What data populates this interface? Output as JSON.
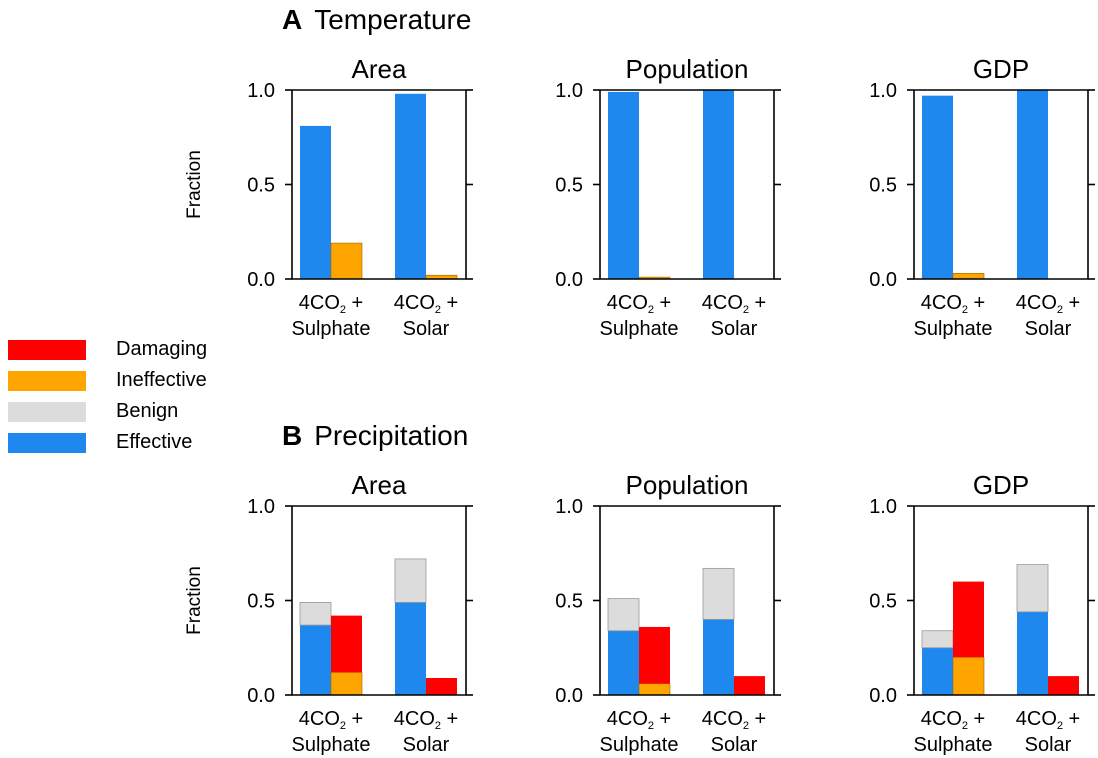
{
  "colors": {
    "Damaging": "#ff0000",
    "Ineffective": "#ffa500",
    "Benign": "#dcdcdc",
    "Effective": "#1e88ee"
  },
  "legend": [
    {
      "label": "Damaging",
      "color": "#ff0000"
    },
    {
      "label": "Ineffective",
      "color": "#ffa500"
    },
    {
      "label": "Benign",
      "color": "#dcdcdc"
    },
    {
      "label": "Effective",
      "color": "#1e88ee"
    }
  ],
  "sections": [
    {
      "letter": "A",
      "title": "Temperature"
    },
    {
      "letter": "B",
      "title": "Precipitation"
    }
  ],
  "chart_data": [
    {
      "type": "bar",
      "section": "A",
      "title": "Area",
      "ylabel": "Fraction",
      "ylim": [
        0,
        1
      ],
      "yticks": [
        "0.0",
        "0.5",
        "1.0"
      ],
      "categories": [
        "4CO2 + Sulphate",
        "4CO2 + Solar"
      ],
      "series": [
        {
          "name": "Effective",
          "values": [
            0.81,
            0.98
          ]
        },
        {
          "name": "Benign",
          "values": [
            0.0,
            0.0
          ]
        },
        {
          "name": "Ineffective",
          "values": [
            0.19,
            0.02
          ]
        },
        {
          "name": "Damaging",
          "values": [
            0.0,
            0.0
          ]
        }
      ]
    },
    {
      "type": "bar",
      "section": "A",
      "title": "Population",
      "ylabel": "",
      "ylim": [
        0,
        1
      ],
      "yticks": [
        "0.0",
        "0.5",
        "1.0"
      ],
      "categories": [
        "4CO2 + Sulphate",
        "4CO2 + Solar"
      ],
      "series": [
        {
          "name": "Effective",
          "values": [
            0.99,
            1.0
          ]
        },
        {
          "name": "Benign",
          "values": [
            0.0,
            0.0
          ]
        },
        {
          "name": "Ineffective",
          "values": [
            0.01,
            0.0
          ]
        },
        {
          "name": "Damaging",
          "values": [
            0.0,
            0.0
          ]
        }
      ]
    },
    {
      "type": "bar",
      "section": "A",
      "title": "GDP",
      "ylabel": "",
      "ylim": [
        0,
        1
      ],
      "yticks": [
        "0.0",
        "0.5",
        "1.0"
      ],
      "categories": [
        "4CO2 + Sulphate",
        "4CO2 + Solar"
      ],
      "series": [
        {
          "name": "Effective",
          "values": [
            0.97,
            1.0
          ]
        },
        {
          "name": "Benign",
          "values": [
            0.0,
            0.0
          ]
        },
        {
          "name": "Ineffective",
          "values": [
            0.03,
            0.0
          ]
        },
        {
          "name": "Damaging",
          "values": [
            0.0,
            0.0
          ]
        }
      ]
    },
    {
      "type": "bar",
      "section": "B",
      "title": "Area",
      "ylabel": "Fraction",
      "ylim": [
        0,
        1
      ],
      "yticks": [
        "0.0",
        "0.5",
        "1.0"
      ],
      "categories": [
        "4CO2 + Sulphate",
        "4CO2 + Solar"
      ],
      "series": [
        {
          "name": "Effective",
          "values": [
            0.37,
            0.49
          ]
        },
        {
          "name": "Benign",
          "values": [
            0.12,
            0.23
          ]
        },
        {
          "name": "Ineffective",
          "values": [
            0.12,
            0.0
          ]
        },
        {
          "name": "Damaging",
          "values": [
            0.3,
            0.09
          ]
        }
      ]
    },
    {
      "type": "bar",
      "section": "B",
      "title": "Population",
      "ylabel": "",
      "ylim": [
        0,
        1
      ],
      "yticks": [
        "0.0",
        "0.5",
        "1.0"
      ],
      "categories": [
        "4CO2 + Sulphate",
        "4CO2 + Solar"
      ],
      "series": [
        {
          "name": "Effective",
          "values": [
            0.34,
            0.4
          ]
        },
        {
          "name": "Benign",
          "values": [
            0.17,
            0.27
          ]
        },
        {
          "name": "Ineffective",
          "values": [
            0.06,
            0.0
          ]
        },
        {
          "name": "Damaging",
          "values": [
            0.3,
            0.1
          ]
        }
      ]
    },
    {
      "type": "bar",
      "section": "B",
      "title": "GDP",
      "ylabel": "",
      "ylim": [
        0,
        1
      ],
      "yticks": [
        "0.0",
        "0.5",
        "1.0"
      ],
      "categories": [
        "4CO2 + Sulphate",
        "4CO2 + Solar"
      ],
      "series": [
        {
          "name": "Effective",
          "values": [
            0.25,
            0.44
          ]
        },
        {
          "name": "Benign",
          "values": [
            0.09,
            0.25
          ]
        },
        {
          "name": "Ineffective",
          "values": [
            0.2,
            0.0
          ]
        },
        {
          "name": "Damaging",
          "values": [
            0.4,
            0.1
          ]
        }
      ]
    }
  ]
}
